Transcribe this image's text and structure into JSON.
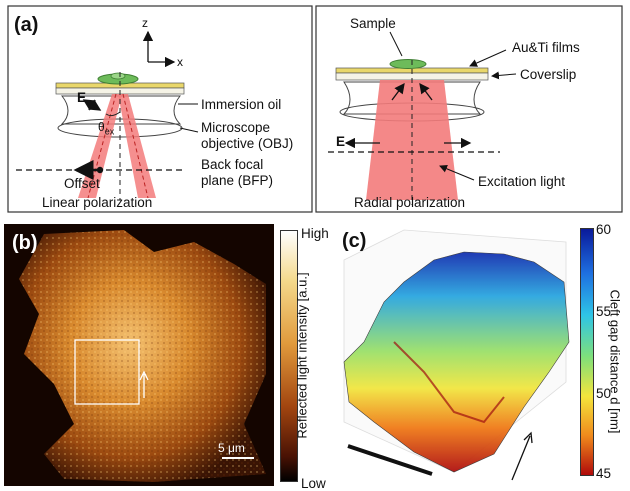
{
  "panel_a": {
    "label": "(a)",
    "axis_z": "z",
    "axis_x": "x",
    "left": {
      "immersion_oil": "Immersion oil",
      "objective_line1": "Microscope",
      "objective_line2": "objective (OBJ)",
      "bfp_line1": "Back focal",
      "bfp_line2": "plane (BFP)",
      "offset": "Offset",
      "e_field": "E",
      "theta": "θ",
      "theta_sub": "ex",
      "polarization": "Linear polarization"
    },
    "right": {
      "sample": "Sample",
      "films": "Au&Ti films",
      "coverslip": "Coverslip",
      "e_field": "E",
      "excitation": "Excitation light",
      "polarization": "Radial polarization"
    }
  },
  "panel_b": {
    "label": "(b)",
    "scale_bar": "5 μm",
    "colorbar_high": "High",
    "colorbar_low": "Low",
    "colorbar_title": "Reflected light intensity [a.u.]"
  },
  "panel_c": {
    "label": "(c)",
    "colorbar_ticks": [
      "60",
      "55",
      "50",
      "45"
    ],
    "colorbar_title": "Cleft gap distance d [nm]"
  }
}
